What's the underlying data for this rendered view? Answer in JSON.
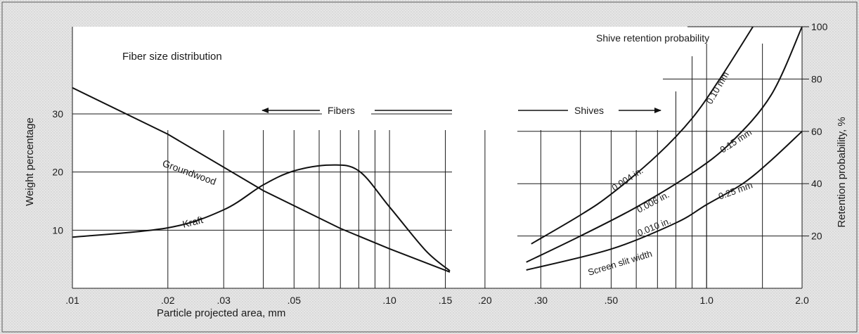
{
  "chart_data": {
    "type": "line",
    "title": "Fiber size distribution",
    "right_title": "Shive retention probability",
    "xlabel": "Particle projected area, mm",
    "ylabel_left": "Weight percentage",
    "ylabel_right": "Retention probability, %",
    "x_scale": "log",
    "xlim": [
      0.01,
      2.0
    ],
    "ylim_left": [
      0,
      45
    ],
    "ylim_right": [
      0,
      100
    ],
    "grid": true,
    "x_ticks": [
      {
        "value": 0.01,
        "label": ".01"
      },
      {
        "value": 0.02,
        "label": ".02"
      },
      {
        "value": 0.03,
        "label": ".03"
      },
      {
        "value": 0.05,
        "label": ".05"
      },
      {
        "value": 0.1,
        "label": ".10"
      },
      {
        "value": 0.15,
        "label": ".15"
      },
      {
        "value": 0.2,
        "label": ".20"
      },
      {
        "value": 0.3,
        "label": ".30"
      },
      {
        "value": 0.5,
        "label": ".50"
      },
      {
        "value": 1.0,
        "label": "1.0"
      },
      {
        "value": 2.0,
        "label": "2.0"
      }
    ],
    "y_left_ticks": [
      {
        "value": 10,
        "label": "10"
      },
      {
        "value": 20,
        "label": "20"
      },
      {
        "value": 30,
        "label": "30"
      }
    ],
    "y_right_ticks": [
      {
        "value": 20,
        "label": "20"
      },
      {
        "value": 40,
        "label": "40"
      },
      {
        "value": 60,
        "label": "60"
      },
      {
        "value": 80,
        "label": "80"
      },
      {
        "value": 100,
        "label": "100"
      }
    ],
    "series": [
      {
        "name": "Groundwood",
        "axis": "left",
        "x": [
          0.01,
          0.02,
          0.04,
          0.07,
          0.1,
          0.155
        ],
        "y": [
          34.5,
          26.5,
          16.8,
          10.3,
          6.8,
          2.8
        ]
      },
      {
        "name": "Kraft",
        "axis": "left",
        "x": [
          0.01,
          0.02,
          0.03,
          0.04,
          0.05,
          0.065,
          0.08,
          0.1,
          0.13,
          0.155
        ],
        "y": [
          8.8,
          10.4,
          13.5,
          17.8,
          20.2,
          21.2,
          20.2,
          14.0,
          6.5,
          3.0
        ]
      },
      {
        "name": "0.004 in. / 0.10 mm",
        "axis": "right",
        "x": [
          0.28,
          0.4,
          0.5,
          0.7,
          0.9,
          1.1,
          1.4
        ],
        "y": [
          17,
          28,
          36,
          51,
          65,
          80,
          100
        ]
      },
      {
        "name": "0.006 in. / 0.15 mm",
        "axis": "right",
        "x": [
          0.27,
          0.4,
          0.6,
          0.9,
          1.2,
          1.6,
          2.0
        ],
        "y": [
          10,
          20,
          31,
          44,
          56,
          74,
          100
        ]
      },
      {
        "name": "0.010 in. / 0.25 mm",
        "axis": "right",
        "x": [
          0.27,
          0.5,
          0.8,
          1.0,
          1.3,
          1.6,
          2.0
        ],
        "y": [
          7,
          15,
          25,
          32,
          40,
          49,
          60
        ]
      }
    ],
    "annotations": {
      "fibers": "Fibers",
      "shives": "Shives",
      "groundwood": "Groundwood",
      "kraft": "Kraft",
      "screen_slit_width": "Screen slit width",
      "slit_004": "0.004 in.",
      "slit_006": "0.006 in.",
      "slit_010": "0.010 in.",
      "slit_010mm": "0.10 mm",
      "slit_015mm": "0.15 mm",
      "slit_025mm": "0.25 mm"
    }
  }
}
